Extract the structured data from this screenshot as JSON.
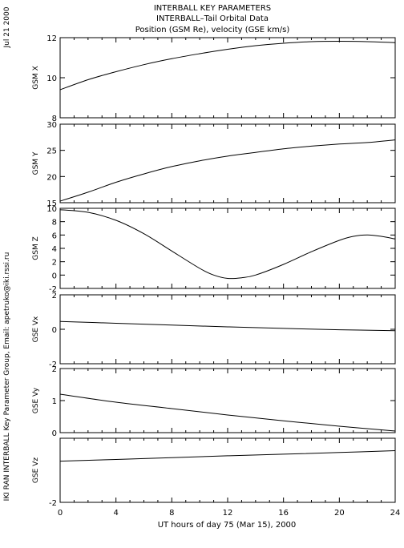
{
  "header": {
    "title1": "INTERBALL KEY PARAMETERS",
    "title2": "INTERBALL–Tail Orbital Data",
    "title3": "Position (GSM Re), velocity (GSE km/s)"
  },
  "side": {
    "date": "Jul 21 2000",
    "credit": "IKI RAN INTERBALL Key Parameter Group, Email: apetruko@iki.rssi.ru"
  },
  "xaxis": {
    "label": "UT hours of day  75 (Mar 15), 2000",
    "min": 0,
    "max": 24,
    "ticks": [
      "0",
      "4",
      "8",
      "12",
      "16",
      "20",
      "24"
    ]
  },
  "chart_data": [
    {
      "type": "line",
      "ylabel": "GSM X",
      "ylim": [
        8,
        12
      ],
      "yticks": [
        "8",
        "10",
        "12"
      ],
      "x": [
        0,
        2,
        4,
        6,
        8,
        10,
        12,
        14,
        16,
        18,
        20,
        22,
        24
      ],
      "values": [
        9.4,
        9.9,
        10.3,
        10.65,
        10.95,
        11.2,
        11.42,
        11.6,
        11.72,
        11.8,
        11.82,
        11.8,
        11.75
      ]
    },
    {
      "type": "line",
      "ylabel": "GSM Y",
      "ylim": [
        15,
        30
      ],
      "yticks": [
        "15",
        "20",
        "25",
        "30"
      ],
      "x": [
        0,
        2,
        4,
        6,
        8,
        10,
        12,
        14,
        16,
        18,
        20,
        22,
        24
      ],
      "values": [
        15.3,
        17.0,
        18.9,
        20.5,
        21.9,
        23.0,
        23.9,
        24.6,
        25.3,
        25.8,
        26.2,
        26.5,
        27.0
      ]
    },
    {
      "type": "line",
      "ylabel": "GSM Z",
      "ylim": [
        -2,
        10
      ],
      "yticks": [
        "-2",
        "0",
        "2",
        "4",
        "6",
        "8",
        "10"
      ],
      "x": [
        0,
        2,
        4,
        6,
        8,
        10,
        11,
        12,
        13,
        14,
        16,
        18,
        20,
        21,
        22,
        23,
        24
      ],
      "values": [
        9.8,
        9.4,
        8.2,
        6.2,
        3.6,
        1.0,
        0.0,
        -0.5,
        -0.4,
        0.0,
        1.6,
        3.5,
        5.2,
        5.8,
        6.0,
        5.8,
        5.4
      ]
    },
    {
      "type": "line",
      "ylabel": "GSE Vx",
      "ylim": [
        -2,
        2
      ],
      "yticks": [
        "-2",
        "0",
        "2"
      ],
      "x": [
        0,
        4,
        8,
        12,
        16,
        20,
        24
      ],
      "values": [
        0.45,
        0.35,
        0.24,
        0.14,
        0.05,
        -0.03,
        -0.08
      ]
    },
    {
      "type": "line",
      "ylabel": "GSE Vy",
      "ylim": [
        0,
        2
      ],
      "yticks": [
        "0",
        "1",
        "2"
      ],
      "x": [
        0,
        4,
        8,
        12,
        16,
        20,
        24
      ],
      "values": [
        1.2,
        0.95,
        0.75,
        0.55,
        0.37,
        0.2,
        0.05
      ]
    },
    {
      "type": "line",
      "ylabel": "GSE Vz",
      "ylim": [
        -2,
        1.5
      ],
      "yticks": [
        "-2"
      ],
      "x": [
        0,
        4,
        8,
        12,
        16,
        20,
        24
      ],
      "values": [
        0.25,
        0.34,
        0.44,
        0.54,
        0.63,
        0.72,
        0.82
      ]
    }
  ]
}
